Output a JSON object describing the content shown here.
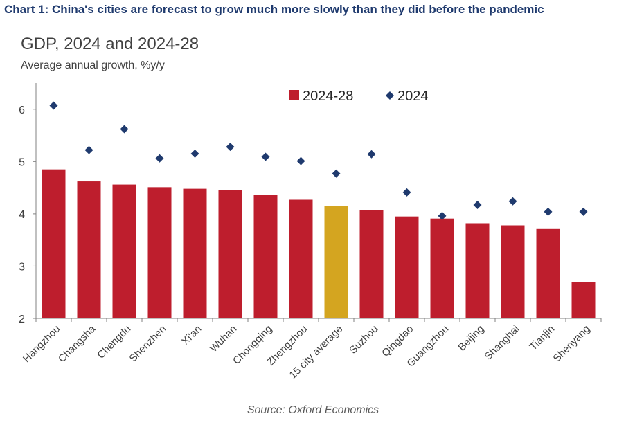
{
  "figure": {
    "heading": "Chart 1: China's cities are forecast to grow much more slowly than they did before the pandemic",
    "source": "Source: Oxford Economics"
  },
  "chart_data": {
    "type": "bar",
    "title": "GDP, 2024 and 2024-28",
    "ylabel": "Average annual growth, %y/y",
    "xlabel": "",
    "ylim": [
      2,
      6.5
    ],
    "yticks": [
      2,
      3,
      4,
      5,
      6
    ],
    "grid": false,
    "legend_position": "top-right",
    "categories": [
      "Hangzhou",
      "Changsha",
      "Chengdu",
      "Shenzhen",
      "Xi'an",
      "Wuhan",
      "Chongqing",
      "Zhengzhou",
      "15 city average",
      "Suzhou",
      "Qingdao",
      "Guangzhou",
      "Beijing",
      "Shanghai",
      "Tianjin",
      "Shenyang"
    ],
    "highlight_category": "15 city average",
    "series": [
      {
        "name": "2024-28",
        "type": "bar",
        "color": "#be1e2d",
        "highlight_color": "#d4a520",
        "values": [
          4.85,
          4.62,
          4.56,
          4.51,
          4.48,
          4.45,
          4.36,
          4.27,
          4.15,
          4.07,
          3.95,
          3.91,
          3.82,
          3.78,
          3.71,
          2.69
        ]
      },
      {
        "name": "2024",
        "type": "scatter",
        "marker": "diamond",
        "color": "#1f3a6e",
        "values": [
          6.07,
          5.22,
          5.62,
          5.06,
          5.15,
          5.28,
          5.09,
          5.01,
          4.77,
          5.14,
          4.41,
          3.96,
          4.17,
          4.24,
          4.04,
          4.04
        ]
      }
    ]
  }
}
